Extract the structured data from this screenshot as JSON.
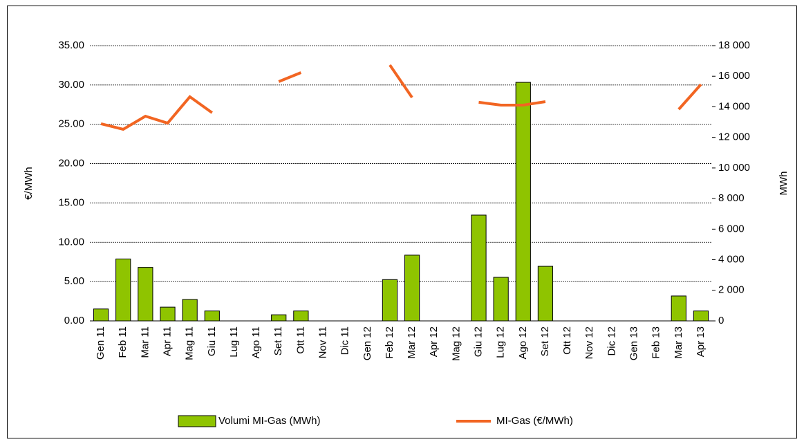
{
  "chart_data": {
    "type": "bar-line",
    "categories": [
      "Gen 11",
      "Feb 11",
      "Mar 11",
      "Apr 11",
      "Mag 11",
      "Giu 11",
      "Lug 11",
      "Ago 11",
      "Set 11",
      "Ott 11",
      "Nov 11",
      "Dic 11",
      "Gen 12",
      "Feb 12",
      "Mar 12",
      "Apr 12",
      "Mag 12",
      "Giu 12",
      "Lug 12",
      "Ago 12",
      "Set 12",
      "Ott 12",
      "Nov 12",
      "Dic 12",
      "Gen 13",
      "Feb 13",
      "Mar 13",
      "Apr 13"
    ],
    "series": [
      {
        "name": "Volumi MI-Gas (MWh)",
        "type": "bar",
        "axis": "y2",
        "color": "#8fc400",
        "values": [
          780,
          4050,
          3500,
          900,
          1400,
          650,
          null,
          null,
          400,
          650,
          null,
          null,
          null,
          2700,
          4300,
          null,
          null,
          6920,
          2850,
          15600,
          3570,
          null,
          null,
          null,
          null,
          null,
          1630,
          650
        ]
      },
      {
        "name": "MI-Gas (€/MWh)",
        "type": "line",
        "axis": "y",
        "color": "#f26522",
        "values": [
          25.07,
          24.36,
          26.03,
          25.15,
          28.5,
          26.47,
          null,
          null,
          30.43,
          31.57,
          null,
          null,
          null,
          32.54,
          28.4,
          null,
          null,
          27.8,
          27.44,
          27.44,
          27.88,
          null,
          null,
          null,
          null,
          null,
          26.9,
          30.07
        ]
      }
    ],
    "ylabel": "€/MWh",
    "y2label": "MWh",
    "ylim": [
      0,
      35
    ],
    "yticks": [
      {
        "value": 0,
        "label": "0.00"
      },
      {
        "value": 5,
        "label": "5.00"
      },
      {
        "value": 10,
        "label": "10.00"
      },
      {
        "value": 15,
        "label": "15.00"
      },
      {
        "value": 20,
        "label": "20.00"
      },
      {
        "value": 25,
        "label": "25.00"
      },
      {
        "value": 30,
        "label": "30.00"
      },
      {
        "value": 35,
        "label": "35.00"
      }
    ],
    "y2lim": [
      0,
      18000
    ],
    "y2ticks": [
      0,
      {
        "value": 2000,
        "label": "2 000"
      },
      {
        "value": 4000,
        "label": "4 000"
      },
      {
        "value": 6000,
        "label": "6 000"
      },
      {
        "value": 8000,
        "label": "8 000"
      },
      {
        "value": 10000,
        "label": "10 000"
      },
      {
        "value": 12000,
        "label": "12 000"
      },
      {
        "value": 14000,
        "label": "14 000"
      },
      {
        "value": 16000,
        "label": "16 000"
      },
      {
        "value": 18000,
        "label": "18 000"
      }
    ],
    "grid": true,
    "legend": "bottom"
  }
}
